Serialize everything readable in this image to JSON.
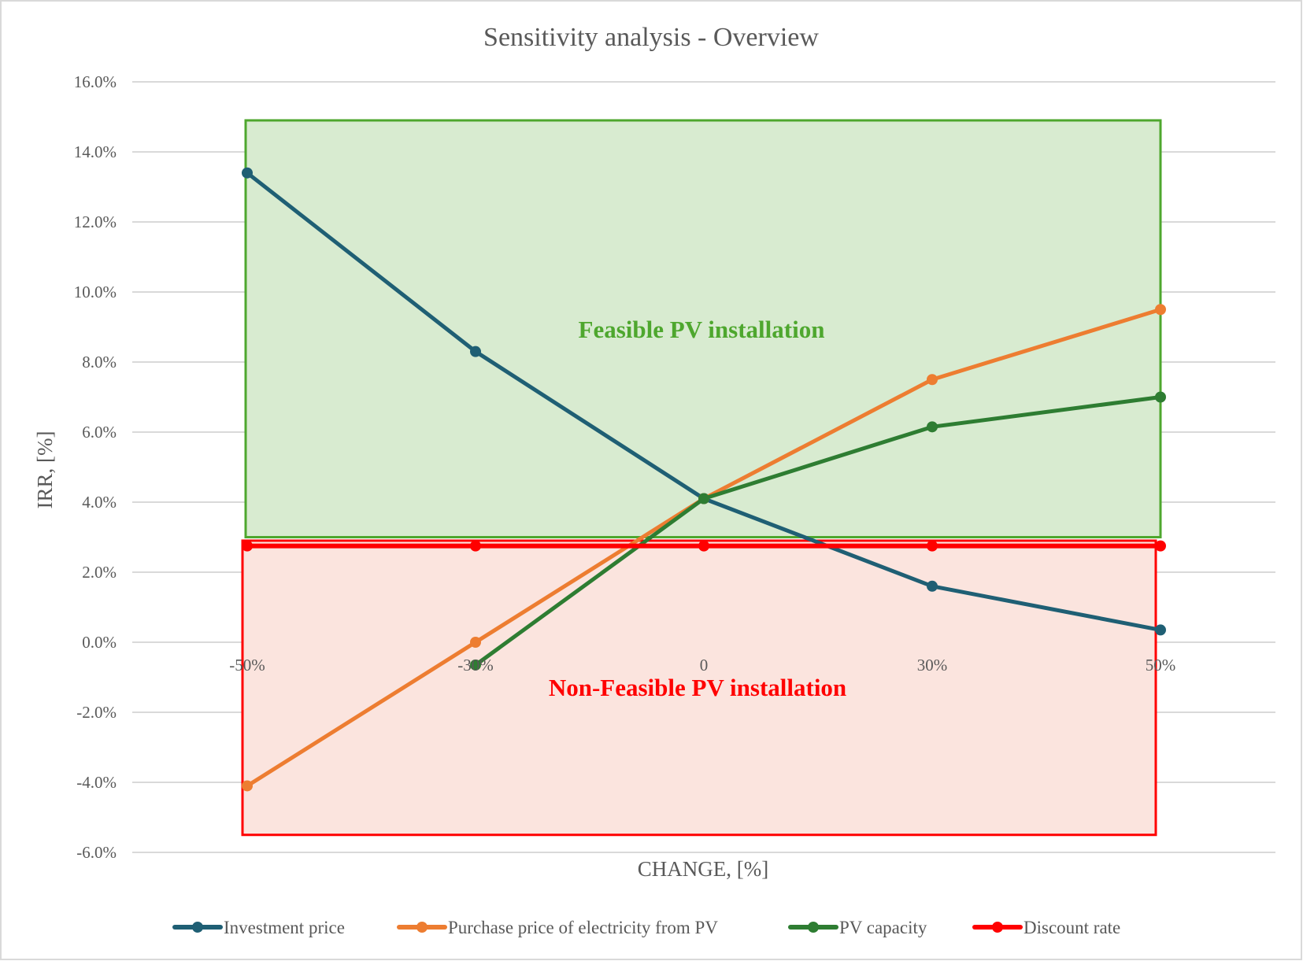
{
  "chart_data": {
    "type": "line",
    "title": "Sensitivity analysis  - Overview",
    "xlabel": "CHANGE, [%]",
    "ylabel": "IRR, [%]",
    "categories": [
      "-50%",
      "-30%",
      "0",
      "30%",
      "50%"
    ],
    "y_ticks": [
      "16.0%",
      "14.0%",
      "12.0%",
      "10.0%",
      "8.0%",
      "6.0%",
      "4.0%",
      "2.0%",
      "0.0%",
      "-2.0%",
      "-4.0%",
      "-6.0%"
    ],
    "ylim": [
      -6,
      16
    ],
    "grid": true,
    "legend_position": "bottom",
    "series": [
      {
        "name": "Investment price",
        "color": "#1f5f74",
        "values": [
          13.4,
          8.3,
          4.1,
          1.6,
          0.35
        ]
      },
      {
        "name": "Purchase price of electricity from PV",
        "color": "#ed7d31",
        "values": [
          -4.1,
          0.0,
          4.1,
          7.5,
          9.5
        ]
      },
      {
        "name": "PV capacity",
        "color": "#2e7d32",
        "values": [
          null,
          -0.65,
          4.1,
          6.15,
          7.0
        ]
      },
      {
        "name": "Discount rate",
        "color": "#ff0000",
        "values": [
          2.75,
          2.75,
          2.75,
          2.75,
          2.75
        ]
      }
    ],
    "regions": [
      {
        "label": "Feasible PV installation",
        "color": "#4ea72e",
        "fill": "#d8ebd0",
        "y_range": [
          3.0,
          14.9
        ]
      },
      {
        "label": "Non-Feasible PV installation",
        "color": "#ff0000",
        "fill": "#fbe4de",
        "y_range": [
          -5.5,
          2.9
        ]
      }
    ]
  }
}
